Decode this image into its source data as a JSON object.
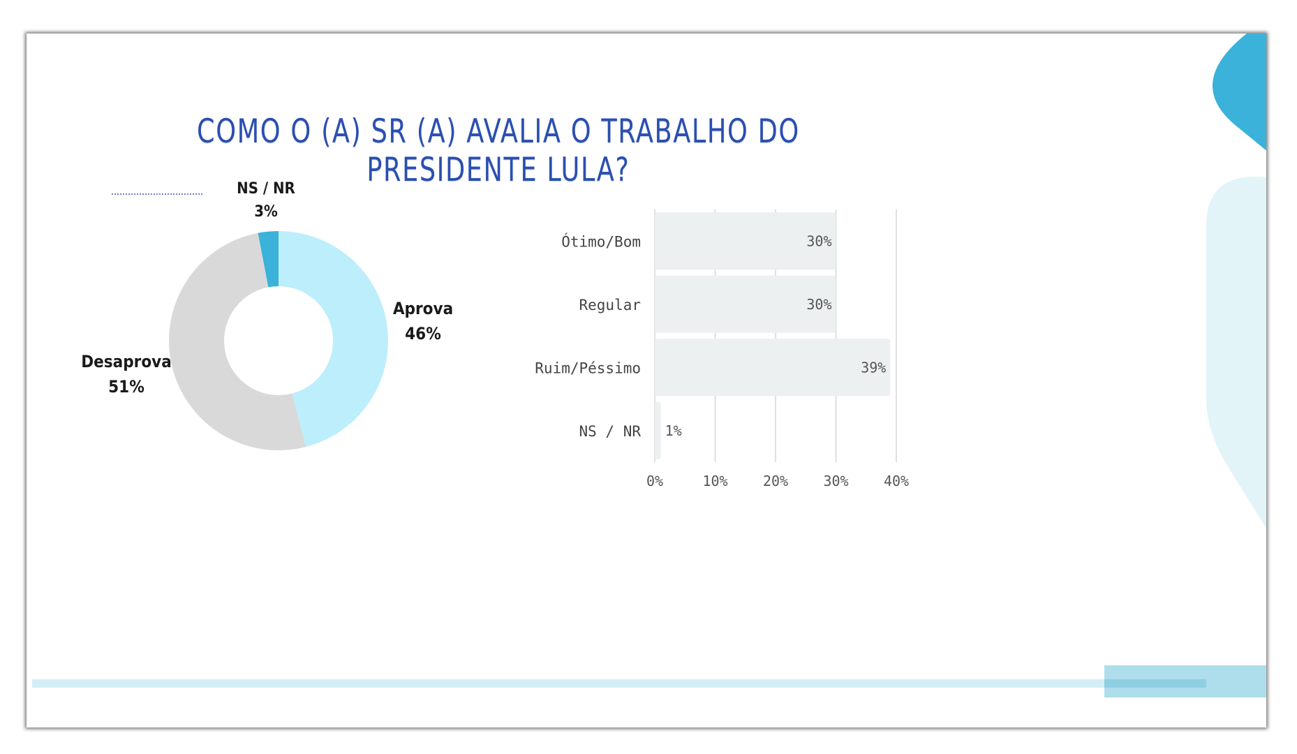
{
  "title": "COMO O (A) SR (A) AVALIA O TRABALHO DO PRESIDENTE LULA?",
  "chart_data": [
    {
      "type": "pie",
      "donut": true,
      "slices": [
        {
          "label": "Aprova",
          "value": 46,
          "display": "46%",
          "color": "#bdeefb"
        },
        {
          "label": "Desaprova",
          "value": 51,
          "display": "51%",
          "color": "#d9d9d9"
        },
        {
          "label": "NS / NR",
          "value": 3,
          "display": "3%",
          "color": "#3ab2d9"
        }
      ]
    },
    {
      "type": "bar",
      "orientation": "horizontal",
      "categories": [
        "Ótimo/Bom",
        "Regular",
        "Ruim/Péssimo",
        "NS / NR"
      ],
      "values": [
        30,
        30,
        39,
        1
      ],
      "value_labels": [
        "30%",
        "30%",
        "39%",
        "1%"
      ],
      "xticks": [
        "0%",
        "10%",
        "20%",
        "30%",
        "40%"
      ],
      "xlim": [
        0,
        40
      ],
      "grid": true,
      "bar_color": "#ecf0f0"
    }
  ],
  "colors": {
    "title": "#2a4fb0",
    "accent_dark": "#3ab2d9",
    "accent_light": "#e3f4f9"
  }
}
